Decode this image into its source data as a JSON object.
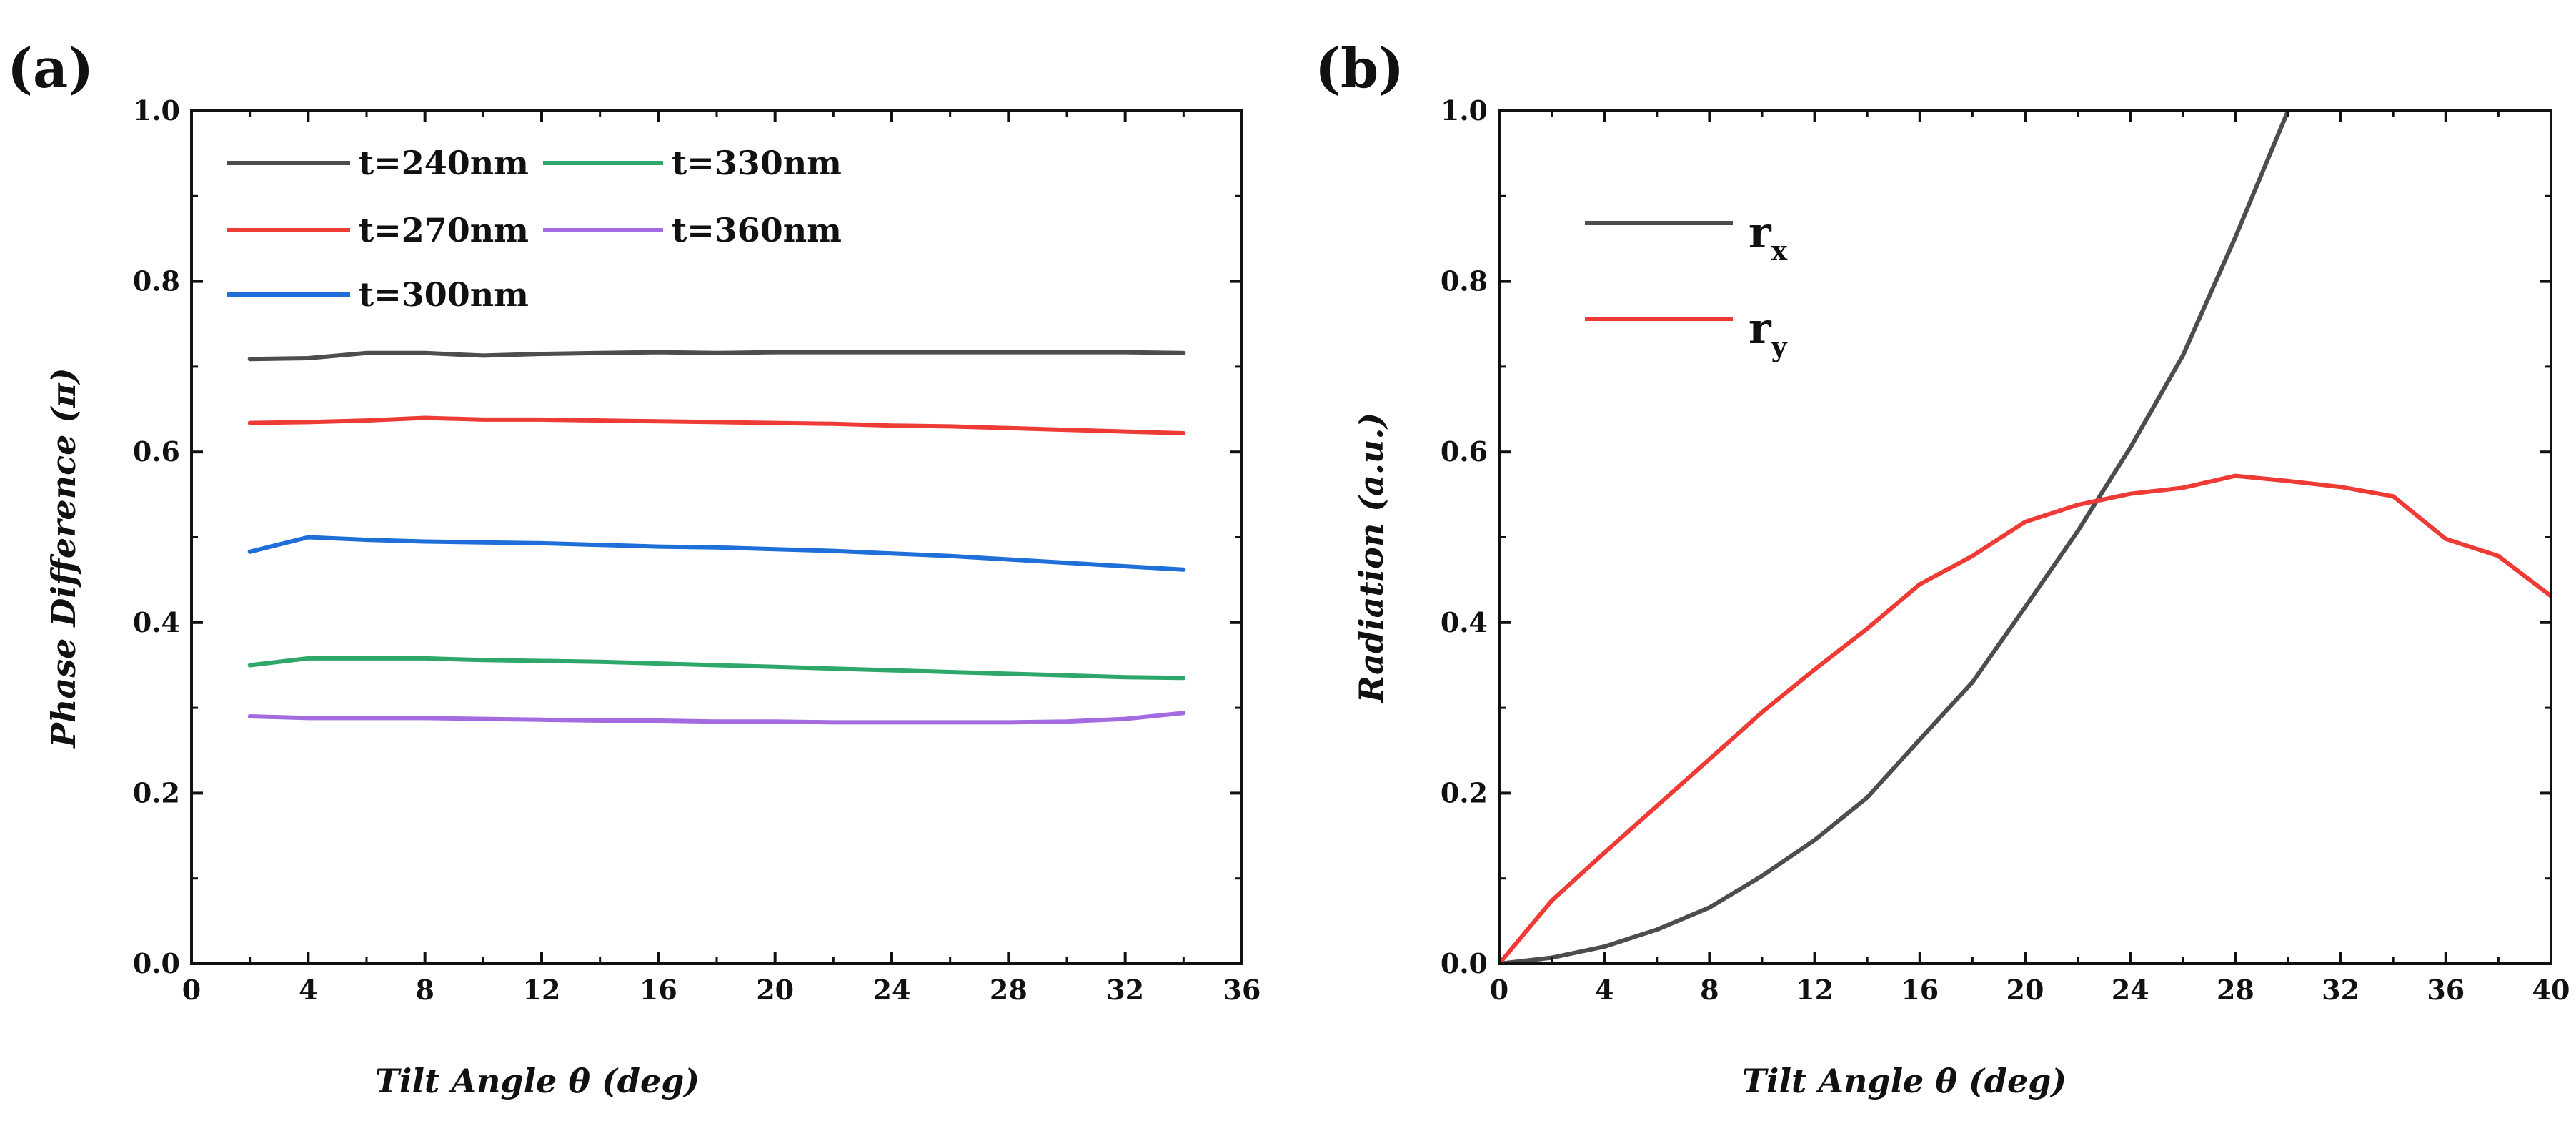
{
  "chart_data": [
    {
      "panel_label": "(a)",
      "type": "line",
      "xlabel": "Tilt Angle θ (deg)",
      "ylabel": "Phase Difference (π)",
      "xlim": [
        0,
        36
      ],
      "ylim": [
        0.0,
        1.0
      ],
      "xticks": [
        "0",
        "4",
        "8",
        "12",
        "16",
        "20",
        "24",
        "28",
        "32",
        "36"
      ],
      "yticks": [
        "0.0",
        "0.2",
        "0.4",
        "0.6",
        "0.8",
        "1.0"
      ],
      "legend_position": "top-left",
      "series": [
        {
          "name": "t=240nm",
          "color": "#4d4d4d",
          "x": [
            2,
            4,
            6,
            8,
            10,
            12,
            14,
            16,
            18,
            20,
            22,
            24,
            26,
            28,
            30,
            32,
            34
          ],
          "y": [
            0.709,
            0.71,
            0.716,
            0.716,
            0.713,
            0.715,
            0.716,
            0.717,
            0.716,
            0.717,
            0.717,
            0.717,
            0.717,
            0.717,
            0.717,
            0.717,
            0.716
          ]
        },
        {
          "name": "t=270nm",
          "color": "#ef3b36",
          "x": [
            2,
            4,
            6,
            8,
            10,
            12,
            14,
            16,
            18,
            20,
            22,
            24,
            26,
            28,
            30,
            32,
            34
          ],
          "y": [
            0.634,
            0.635,
            0.637,
            0.64,
            0.638,
            0.638,
            0.637,
            0.636,
            0.635,
            0.634,
            0.633,
            0.631,
            0.63,
            0.628,
            0.626,
            0.624,
            0.622
          ]
        },
        {
          "name": "t=300nm",
          "color": "#1f6fd8",
          "x": [
            2,
            4,
            6,
            8,
            10,
            12,
            14,
            16,
            18,
            20,
            22,
            24,
            26,
            28,
            30,
            32,
            34
          ],
          "y": [
            0.483,
            0.5,
            0.497,
            0.495,
            0.494,
            0.493,
            0.491,
            0.489,
            0.488,
            0.486,
            0.484,
            0.481,
            0.478,
            0.474,
            0.47,
            0.466,
            0.462
          ]
        },
        {
          "name": "t=330nm",
          "color": "#2ea86a",
          "x": [
            2,
            4,
            6,
            8,
            10,
            12,
            14,
            16,
            18,
            20,
            22,
            24,
            26,
            28,
            30,
            32,
            34
          ],
          "y": [
            0.35,
            0.358,
            0.358,
            0.358,
            0.356,
            0.355,
            0.354,
            0.352,
            0.35,
            0.348,
            0.346,
            0.344,
            0.342,
            0.34,
            0.338,
            0.336,
            0.335
          ]
        },
        {
          "name": "t=360nm",
          "color": "#a46be0",
          "x": [
            2,
            4,
            6,
            8,
            10,
            12,
            14,
            16,
            18,
            20,
            22,
            24,
            26,
            28,
            30,
            32,
            34
          ],
          "y": [
            0.29,
            0.288,
            0.288,
            0.288,
            0.287,
            0.286,
            0.285,
            0.285,
            0.284,
            0.284,
            0.283,
            0.283,
            0.283,
            0.283,
            0.284,
            0.287,
            0.294
          ]
        }
      ]
    },
    {
      "panel_label": "(b)",
      "type": "line",
      "xlabel": "Tilt Angle θ (deg)",
      "ylabel": "Radiation (a.u.)",
      "xlim": [
        0,
        40
      ],
      "ylim": [
        0.0,
        1.0
      ],
      "xticks": [
        "0",
        "4",
        "8",
        "12",
        "16",
        "20",
        "24",
        "28",
        "32",
        "36",
        "40"
      ],
      "yticks": [
        "0.0",
        "0.2",
        "0.4",
        "0.6",
        "0.8",
        "1.0"
      ],
      "legend_position": "top-left",
      "series": [
        {
          "name": "r",
          "subscript": "x",
          "color": "#4d4d4d",
          "x": [
            0,
            2,
            4,
            6,
            8,
            10,
            12,
            14,
            16,
            18,
            20,
            22,
            24,
            26,
            28,
            30
          ],
          "y": [
            0.0,
            0.007,
            0.02,
            0.04,
            0.066,
            0.103,
            0.145,
            0.195,
            0.263,
            0.33,
            0.418,
            0.507,
            0.605,
            0.713,
            0.852,
            1.0
          ]
        },
        {
          "name": "r",
          "subscript": "y",
          "color": "#ef3b36",
          "x": [
            0,
            2,
            4,
            6,
            8,
            10,
            12,
            14,
            16,
            18,
            20,
            22,
            24,
            26,
            28,
            30,
            32,
            34,
            36,
            38,
            40
          ],
          "y": [
            0.0,
            0.074,
            0.13,
            0.185,
            0.24,
            0.295,
            0.345,
            0.393,
            0.445,
            0.478,
            0.518,
            0.538,
            0.551,
            0.558,
            0.572,
            0.566,
            0.559,
            0.548,
            0.498,
            0.478,
            0.431
          ]
        }
      ]
    }
  ]
}
